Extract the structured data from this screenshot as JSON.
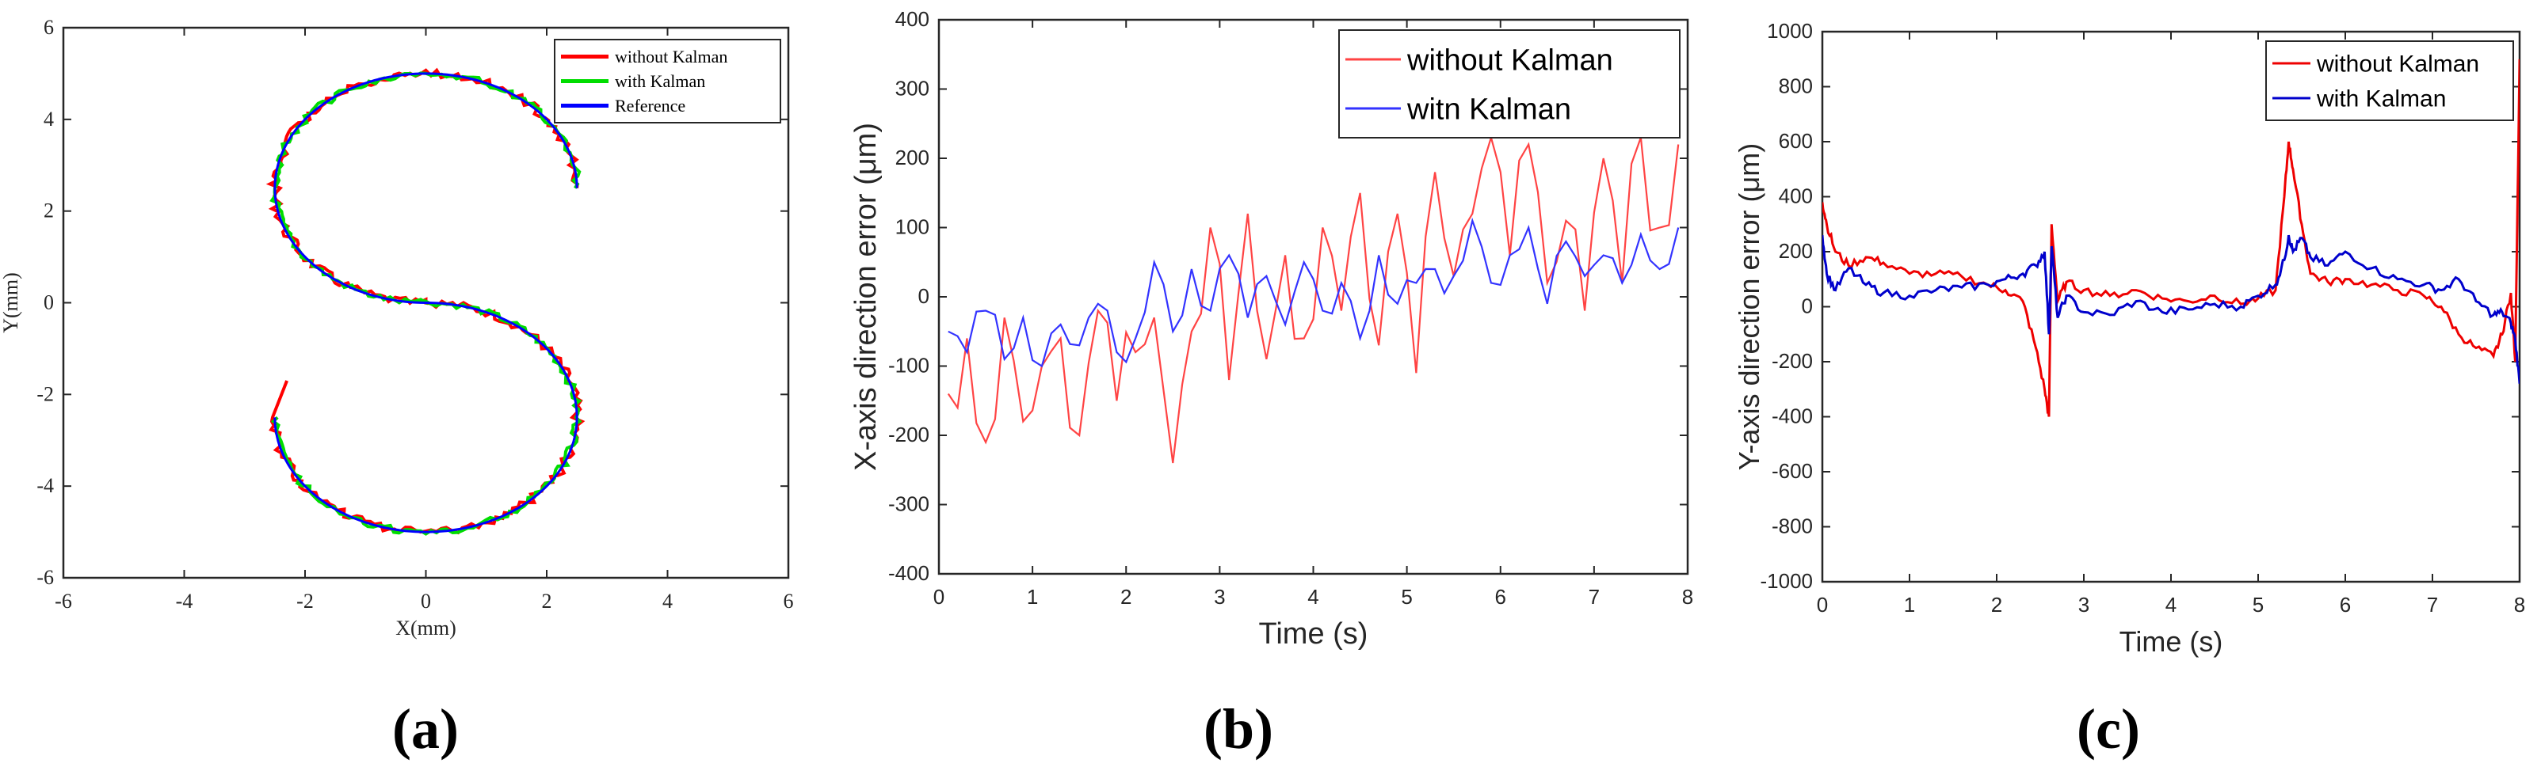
{
  "chart_data": [
    {
      "type": "line",
      "panel_label": "(a)",
      "title": "",
      "xlabel": "X(mm)",
      "ylabel": "Y(mm)",
      "xlim": [
        -6,
        6
      ],
      "ylim": [
        -6,
        6
      ],
      "xticks": [
        "-6",
        "-4",
        "-2",
        "0",
        "2",
        "4",
        "6"
      ],
      "yticks": [
        "6",
        "4",
        "2",
        "0",
        "-2",
        "-4",
        "-6"
      ],
      "legend_position": "top-right",
      "series": [
        {
          "name": "without Kalman",
          "color": "#ff0000",
          "points": "s-curve-with-noise"
        },
        {
          "name": "with Kalman",
          "color": "#00dd00",
          "points": "s-curve-with-noise"
        },
        {
          "name": "Reference",
          "color": "#0000ff",
          "points": "s-curve: upper arc center (0,2.5) r=2.5 from 0 to 270 deg; lower arc center (0,-2.5) r=2.5 from 90 to -180 deg"
        }
      ]
    },
    {
      "type": "line",
      "panel_label": "(b)",
      "title": "",
      "xlabel": "Time (s)",
      "ylabel": "X-axis direction error (μm)",
      "xlim": [
        0,
        8
      ],
      "ylim": [
        -400,
        400
      ],
      "xticks": [
        "0",
        "1",
        "2",
        "3",
        "4",
        "5",
        "6",
        "7",
        "8"
      ],
      "yticks": [
        "400",
        "300",
        "200",
        "100",
        "0",
        "-100",
        "-200",
        "-300",
        "-400"
      ],
      "legend_position": "top-right",
      "series": [
        {
          "name": "without Kalman",
          "color": "#ff4444",
          "x": [
            0.1,
            0.3,
            0.5,
            0.7,
            0.9,
            1.1,
            1.3,
            1.5,
            1.7,
            1.9,
            2.1,
            2.3,
            2.5,
            2.7,
            2.9,
            3.1,
            3.3,
            3.5,
            3.7,
            3.9,
            4.1,
            4.3,
            4.5,
            4.7,
            4.9,
            5.1,
            5.3,
            5.5,
            5.7,
            5.9,
            6.1,
            6.3,
            6.5,
            6.7,
            6.9,
            7.1,
            7.3,
            7.5,
            7.7,
            7.9
          ],
          "values": [
            -140,
            -60,
            -210,
            -30,
            -180,
            -100,
            -60,
            -200,
            -20,
            -150,
            -80,
            -30,
            -240,
            -50,
            100,
            -120,
            120,
            -90,
            60,
            -60,
            100,
            -20,
            150,
            -70,
            120,
            -110,
            180,
            30,
            120,
            230,
            60,
            220,
            20,
            110,
            -20,
            200,
            20,
            230,
            100,
            220
          ]
        },
        {
          "name": "witn Kalman",
          "color": "#3333ff",
          "x": [
            0.1,
            0.3,
            0.5,
            0.7,
            0.9,
            1.1,
            1.3,
            1.5,
            1.7,
            1.9,
            2.1,
            2.3,
            2.5,
            2.7,
            2.9,
            3.1,
            3.3,
            3.5,
            3.7,
            3.9,
            4.1,
            4.3,
            4.5,
            4.7,
            4.9,
            5.1,
            5.3,
            5.5,
            5.7,
            5.9,
            6.1,
            6.3,
            6.5,
            6.7,
            6.9,
            7.1,
            7.3,
            7.5,
            7.7,
            7.9
          ],
          "values": [
            -50,
            -80,
            -20,
            -90,
            -30,
            -100,
            -40,
            -70,
            -10,
            -80,
            -60,
            50,
            -50,
            40,
            -20,
            60,
            -30,
            30,
            -40,
            50,
            -20,
            20,
            -60,
            60,
            -10,
            20,
            40,
            30,
            110,
            20,
            60,
            100,
            -10,
            80,
            30,
            60,
            20,
            90,
            40,
            100
          ]
        }
      ]
    },
    {
      "type": "line",
      "panel_label": "(c)",
      "title": "",
      "xlabel": "Time (s)",
      "ylabel": "Y-axis direction error (μm)",
      "xlim": [
        0,
        8
      ],
      "ylim": [
        -1000,
        1000
      ],
      "xticks": [
        "0",
        "1",
        "2",
        "3",
        "4",
        "5",
        "6",
        "7",
        "8"
      ],
      "yticks": [
        "1000",
        "800",
        "600",
        "400",
        "200",
        "0",
        "-200",
        "-400",
        "-600",
        "-800",
        "-1000"
      ],
      "legend_position": "top-right",
      "series": [
        {
          "name": "without Kalman",
          "color": "#ee0000",
          "x": [
            0,
            0.05,
            0.15,
            0.3,
            0.5,
            0.7,
            1.0,
            1.3,
            1.6,
            1.9,
            2.1,
            2.3,
            2.45,
            2.55,
            2.6,
            2.63,
            2.7,
            2.8,
            3.0,
            3.3,
            3.6,
            3.9,
            4.2,
            4.5,
            4.8,
            5.0,
            5.2,
            5.3,
            5.35,
            5.4,
            5.5,
            5.6,
            5.8,
            6.0,
            6.3,
            6.6,
            6.9,
            7.1,
            7.3,
            7.5,
            7.7,
            7.8,
            7.9,
            7.95,
            8.0
          ],
          "values": [
            380,
            300,
            200,
            150,
            180,
            160,
            120,
            120,
            110,
            80,
            60,
            20,
            -150,
            -300,
            -400,
            300,
            20,
            90,
            60,
            40,
            60,
            30,
            20,
            40,
            10,
            30,
            60,
            400,
            600,
            500,
            300,
            120,
            90,
            100,
            80,
            60,
            40,
            0,
            -100,
            -150,
            -180,
            -100,
            50,
            -200,
            900
          ]
        },
        {
          "name": "with Kalman",
          "color": "#0000cc",
          "x": [
            0,
            0.05,
            0.15,
            0.3,
            0.5,
            0.7,
            1.0,
            1.3,
            1.6,
            1.9,
            2.1,
            2.3,
            2.45,
            2.55,
            2.6,
            2.63,
            2.7,
            2.8,
            3.0,
            3.3,
            3.6,
            3.9,
            4.2,
            4.5,
            4.8,
            5.0,
            5.2,
            5.3,
            5.35,
            5.4,
            5.5,
            5.6,
            5.8,
            6.0,
            6.3,
            6.6,
            6.9,
            7.1,
            7.3,
            7.5,
            7.7,
            7.8,
            7.9,
            7.95,
            8.0
          ],
          "values": [
            260,
            120,
            60,
            140,
            80,
            50,
            40,
            60,
            70,
            80,
            100,
            120,
            150,
            200,
            -100,
            220,
            -40,
            40,
            -20,
            -30,
            20,
            -20,
            -10,
            10,
            0,
            40,
            80,
            170,
            260,
            200,
            250,
            180,
            150,
            200,
            140,
            100,
            80,
            60,
            100,
            20,
            -30,
            -20,
            -60,
            -120,
            -280
          ]
        }
      ]
    }
  ]
}
